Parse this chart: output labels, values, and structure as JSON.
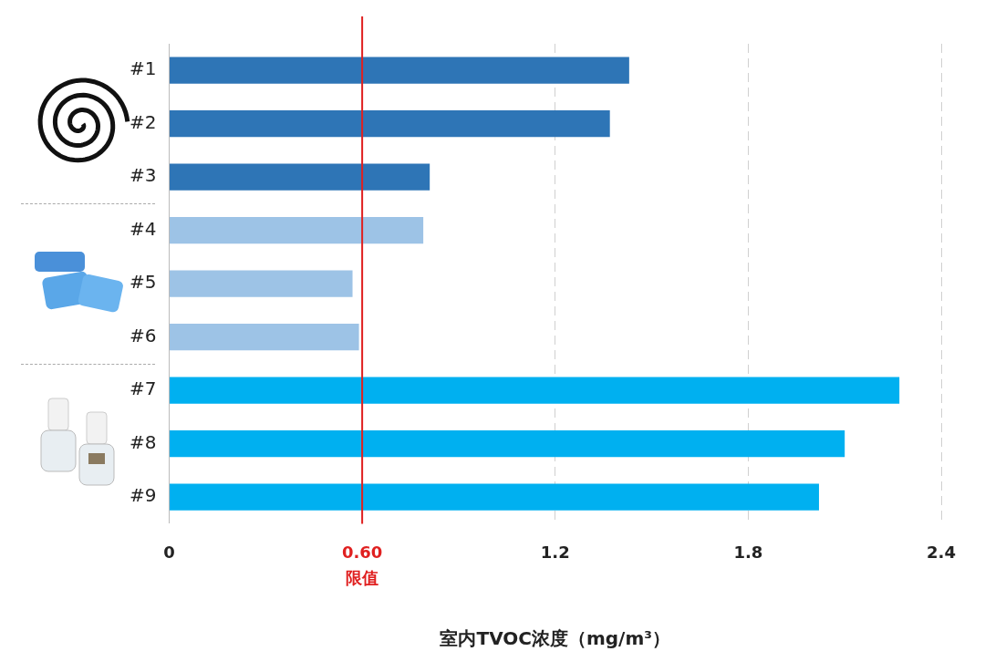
{
  "chart_data": {
    "type": "bar",
    "orientation": "horizontal",
    "xlabel": "室内TVOC浓度（mg/m³）",
    "categories": [
      "#1",
      "#2",
      "#3",
      "#4",
      "#5",
      "#6",
      "#7",
      "#8",
      "#9"
    ],
    "values": [
      1.43,
      1.37,
      0.81,
      0.79,
      0.57,
      0.59,
      2.27,
      2.1,
      2.02
    ],
    "colors": [
      "#2e75b6",
      "#2e75b6",
      "#2e75b6",
      "#9dc3e6",
      "#9dc3e6",
      "#9dc3e6",
      "#00b0f0",
      "#00b0f0",
      "#00b0f0"
    ],
    "xlim": [
      0,
      2.4
    ],
    "xticks": [
      0,
      {
        "value": 0.6,
        "label": "0.60"
      },
      1.2,
      1.8,
      2.4
    ],
    "ref_lines": [
      {
        "axis": "x",
        "value": 0.6,
        "label": "限值",
        "color": "#e02020"
      }
    ],
    "grid": "x",
    "legend": false
  }
}
